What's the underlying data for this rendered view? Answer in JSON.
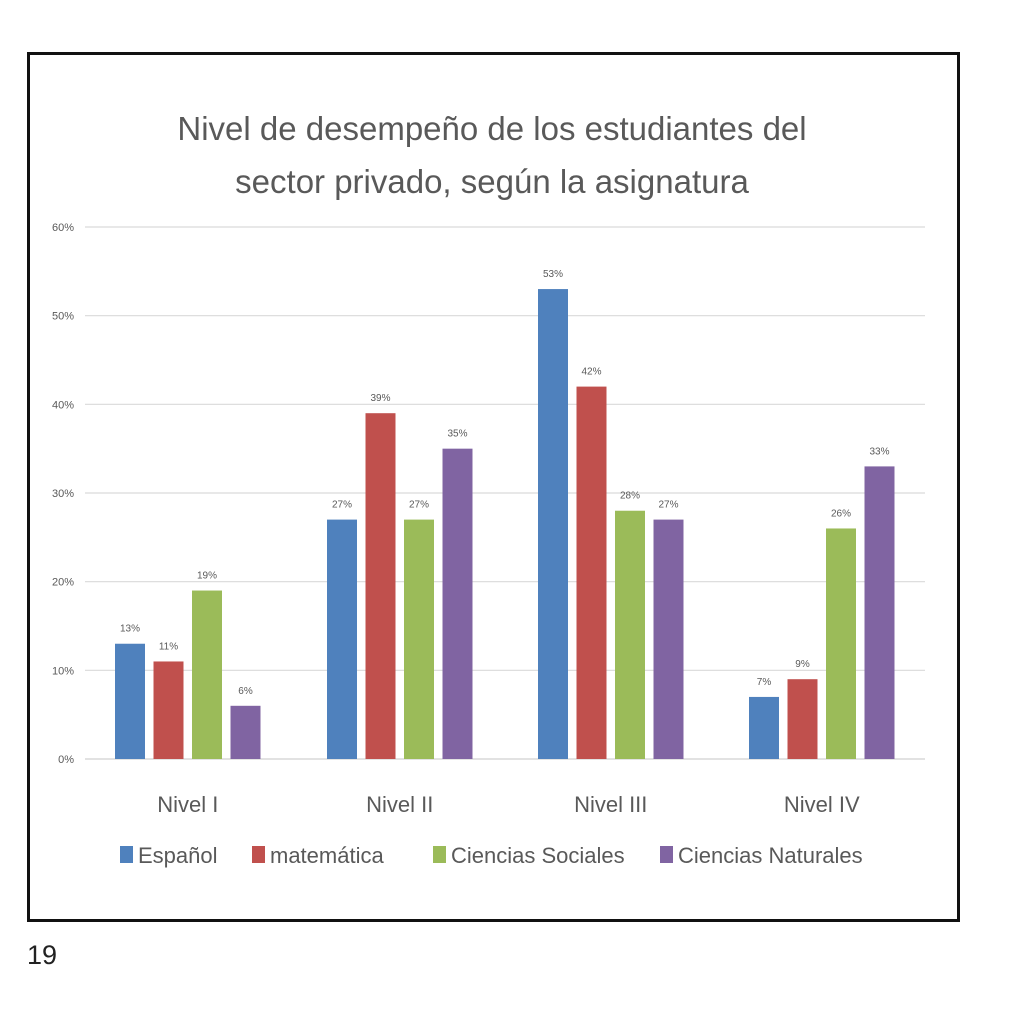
{
  "page": {
    "page_number": "19"
  },
  "chart_data": {
    "type": "bar",
    "title_lines": [
      "Nivel de desempeño de los estudiantes del",
      "sector privado, según la asignatura"
    ],
    "title": "Nivel de desempeño de los estudiantes del sector privado, según la asignatura",
    "xlabel": "",
    "ylabel": "",
    "categories": [
      "Nivel I",
      "Nivel II",
      "Nivel III",
      "Nivel IV"
    ],
    "series": [
      {
        "name": "Español",
        "color": "#4f81bd",
        "values": [
          13,
          27,
          53,
          7
        ]
      },
      {
        "name": "matemática",
        "color": "#c0504d",
        "values": [
          11,
          39,
          42,
          9
        ]
      },
      {
        "name": "Ciencias Sociales",
        "color": "#9bbb59",
        "values": [
          19,
          27,
          28,
          26
        ]
      },
      {
        "name": "Ciencias Naturales",
        "color": "#8064a2",
        "values": [
          6,
          35,
          27,
          33
        ]
      }
    ],
    "value_suffix": "%",
    "ylim": [
      0,
      60
    ],
    "yticks": [
      0,
      10,
      20,
      30,
      40,
      50,
      60
    ],
    "ytick_labels": [
      "0%",
      "10%",
      "20%",
      "30%",
      "40%",
      "50%",
      "60%"
    ],
    "grid": true,
    "data_labels": true,
    "legend_position": "bottom"
  }
}
